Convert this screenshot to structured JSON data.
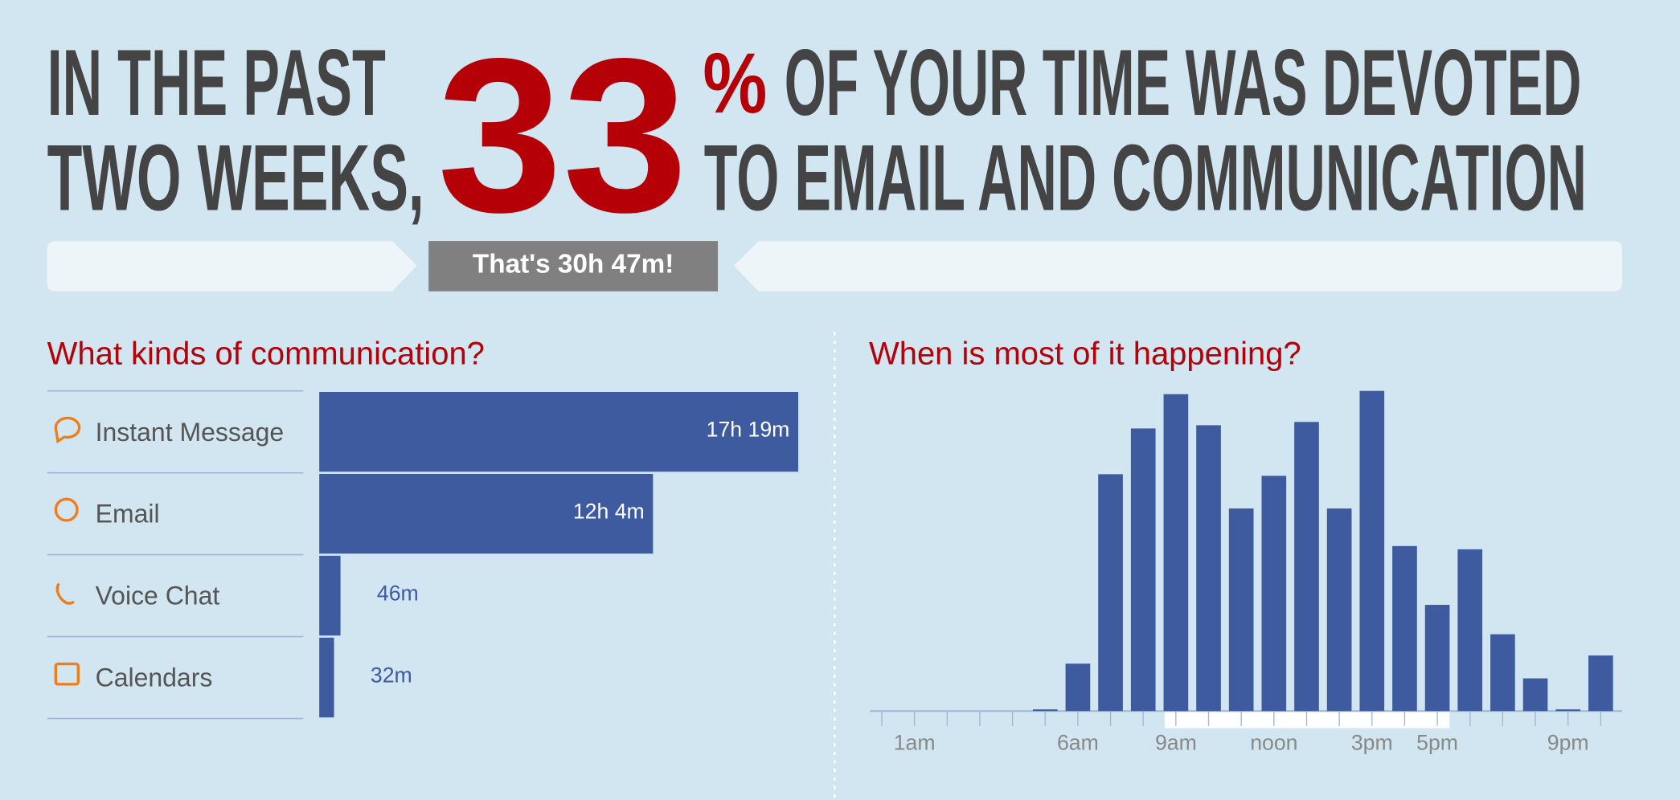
{
  "headline": {
    "left_1": "IN THE PAST",
    "left_2": "TWO WEEKS,",
    "percent": "33",
    "percent_sign": "%",
    "right_1": "OF YOUR TIME WAS DEVOTED",
    "right_2": "TO EMAIL AND COMMUNICATION"
  },
  "banner": "That's 30h 47m!",
  "chart_data": [
    {
      "type": "hbar",
      "title": "What kinds of communication?",
      "categories": [
        "Instant Message",
        "Email",
        "Voice Chat",
        "Calendars"
      ],
      "values": [
        1039,
        724,
        46,
        32
      ],
      "value_labels": [
        "17h 19m",
        "12h 4m",
        "46m",
        "32m"
      ],
      "color": "#3e5ba0"
    },
    {
      "type": "bar",
      "title": "When is most of it happening?",
      "categories": [
        null,
        "1am",
        null,
        null,
        null,
        null,
        "6am",
        null,
        null,
        "9am",
        null,
        null,
        "noon",
        null,
        null,
        "3pm",
        null,
        "5pm",
        null,
        null,
        null,
        "9pm",
        null
      ],
      "values": [
        0,
        0,
        0,
        0,
        0,
        1,
        29,
        145,
        173,
        194,
        175,
        124,
        144,
        177,
        124,
        196,
        101,
        65,
        99,
        47,
        20,
        1,
        34
      ],
      "color": "#3e5ba0"
    }
  ]
}
